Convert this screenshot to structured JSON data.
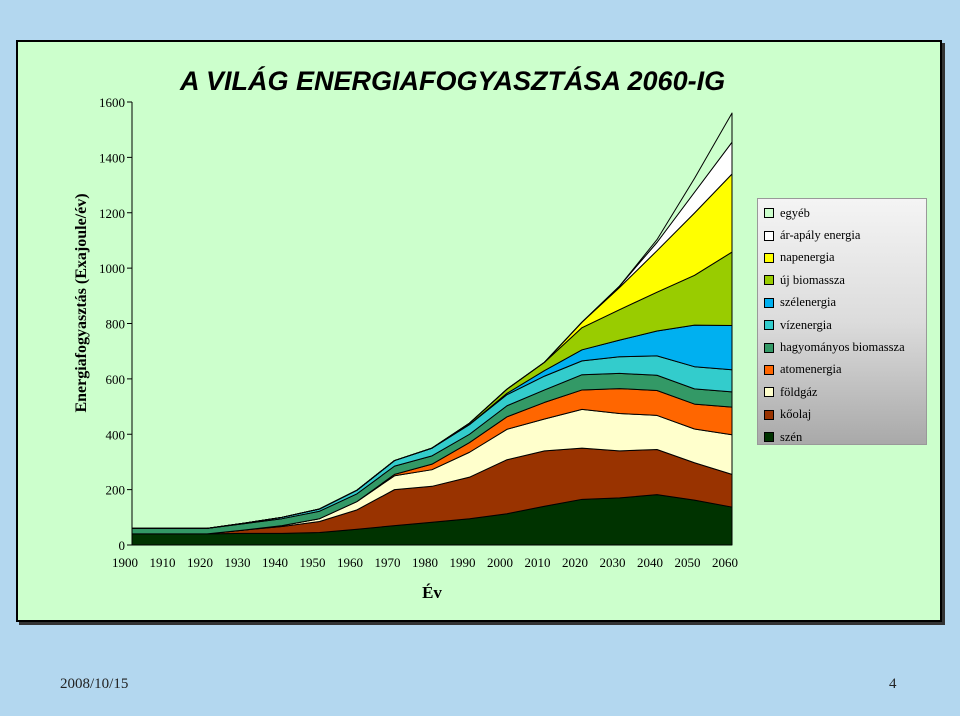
{
  "slide": {
    "date": "2008/10/15",
    "page_number": "4"
  },
  "chart_data": {
    "type": "area",
    "stacked": true,
    "title": "A VILÁG ENERGIAFOGYASZTÁSA 2060-IG",
    "xlabel": "Év",
    "ylabel": "Energiafogyasztás (Exajoule/év)",
    "ylim": [
      0,
      1600
    ],
    "yticks": [
      0,
      200,
      400,
      600,
      800,
      1000,
      1200,
      1400,
      1600
    ],
    "x": [
      1900,
      1910,
      1920,
      1930,
      1940,
      1950,
      1960,
      1970,
      1980,
      1990,
      2000,
      2010,
      2020,
      2030,
      2040,
      2050,
      2060
    ],
    "legend_position": "right",
    "series": [
      {
        "name": "szén",
        "color": "#003300",
        "values": [
          40,
          40,
          40,
          42,
          42,
          45,
          57,
          70,
          82,
          95,
          113,
          140,
          165,
          170,
          182,
          162,
          137
        ]
      },
      {
        "name": "kőolaj",
        "color": "#993300",
        "values": [
          0,
          0,
          0,
          12,
          25,
          40,
          70,
          130,
          130,
          150,
          195,
          200,
          185,
          170,
          163,
          135,
          118
        ]
      },
      {
        "name": "földgáz",
        "color": "#ffffcc",
        "values": [
          0,
          0,
          0,
          0,
          3,
          10,
          30,
          50,
          60,
          90,
          110,
          115,
          140,
          135,
          123,
          122,
          143
        ]
      },
      {
        "name": "atomenergia",
        "color": "#ff6600",
        "values": [
          0,
          0,
          0,
          0,
          0,
          0,
          0,
          5,
          20,
          35,
          45,
          60,
          70,
          90,
          90,
          90,
          100
        ]
      },
      {
        "name": "hagyományos biomassza",
        "color": "#339966",
        "values": [
          20,
          20,
          20,
          23,
          25,
          27,
          28,
          30,
          30,
          30,
          40,
          45,
          55,
          55,
          55,
          55,
          55
        ]
      },
      {
        "name": "vízenergia",
        "color": "#33cccc",
        "values": [
          0,
          0,
          0,
          2,
          5,
          8,
          13,
          20,
          28,
          35,
          40,
          50,
          50,
          60,
          70,
          80,
          80
        ]
      },
      {
        "name": "szélenergia",
        "color": "#00b0f0",
        "values": [
          0,
          0,
          0,
          0,
          0,
          0,
          0,
          0,
          0,
          0,
          5,
          20,
          40,
          60,
          90,
          150,
          160
        ]
      },
      {
        "name": "új biomassza",
        "color": "#99cc00",
        "values": [
          0,
          0,
          0,
          0,
          0,
          0,
          0,
          0,
          0,
          5,
          15,
          30,
          80,
          110,
          140,
          180,
          265
        ]
      },
      {
        "name": "napenergia",
        "color": "#ffff00",
        "values": [
          0,
          0,
          0,
          0,
          0,
          0,
          0,
          0,
          0,
          0,
          0,
          0,
          20,
          80,
          150,
          225,
          282
        ]
      },
      {
        "name": "ár-apály energia",
        "color": "#ffffff",
        "values": [
          0,
          0,
          0,
          0,
          0,
          0,
          0,
          0,
          0,
          0,
          0,
          0,
          0,
          5,
          30,
          75,
          115
        ]
      },
      {
        "name": "egyéb",
        "color": "#ccffcc",
        "values": [
          0,
          0,
          0,
          0,
          0,
          0,
          0,
          0,
          0,
          0,
          0,
          0,
          0,
          0,
          10,
          50,
          105
        ]
      }
    ]
  }
}
